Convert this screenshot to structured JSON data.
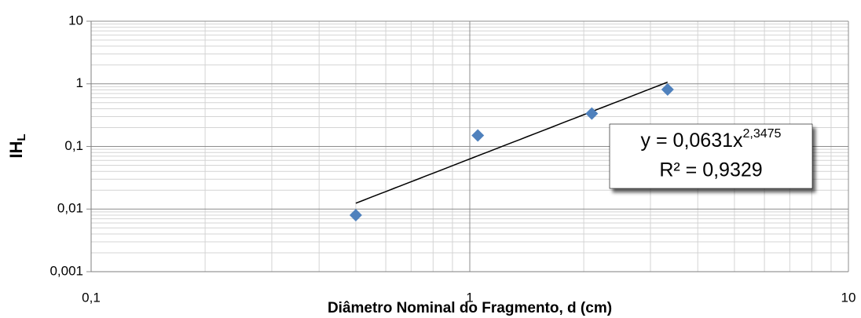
{
  "chart_data": {
    "type": "scatter",
    "x_label": "Diâmetro Nominal do Fragmento, d (cm)",
    "y_label": "IH",
    "y_label_sub": "L",
    "x": [
      0.5,
      1.05,
      2.1,
      3.33
    ],
    "series": [
      {
        "color": "#4f81bd",
        "values": [
          0.008,
          0.15,
          0.335,
          0.81
        ]
      }
    ],
    "xlim": [
      0.1,
      10
    ],
    "ylim": [
      0.001,
      10
    ],
    "xticks": [
      {
        "value": 0.1,
        "label": "0,1"
      },
      1,
      10
    ],
    "yticks": [
      {
        "value": 0.001,
        "label": "0,001"
      },
      {
        "value": 0.01,
        "label": "0,01"
      },
      {
        "value": 0.1,
        "label": "0,1"
      },
      1,
      10
    ],
    "xlog": true,
    "ylog": true,
    "grid": true,
    "trendline": {
      "type": "power",
      "coefficient": 0.0631,
      "exponent": 2.3475,
      "equation": "y = 0,0631x",
      "exponent_label": "2,3475",
      "r2_label": "R² = 0,9329"
    }
  }
}
